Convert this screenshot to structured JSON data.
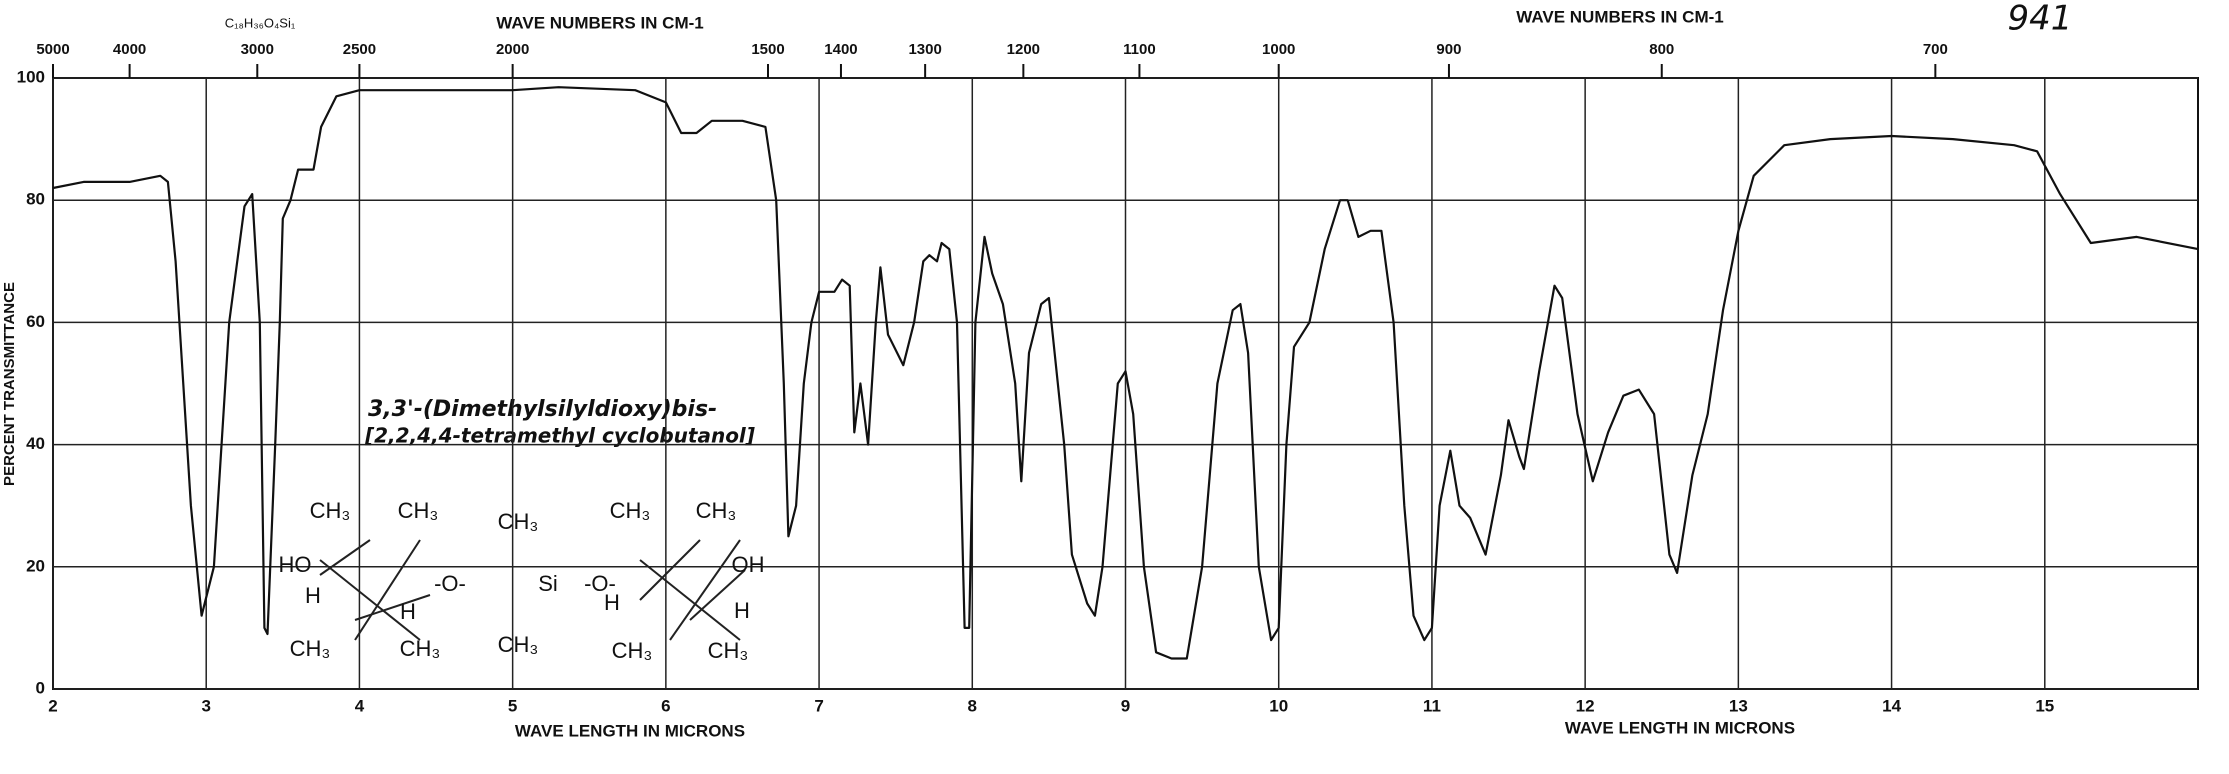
{
  "chart_data": {
    "type": "line",
    "formula": "C₁₈H₃₆O₄Si₁",
    "top_axis_label": "WAVE NUMBERS IN CM-1",
    "top_axis_label_right": "WAVE NUMBERS IN CM-1",
    "x_label": "WAVE LENGTH IN MICRONS",
    "x_label_right": "WAVE LENGTH IN MICRONS",
    "y_label": "PERCENT TRANSMITTANCE",
    "spectrum_number": "941",
    "annotation": [
      "3,3'-(Dimethylsilyldioxy)bis-",
      "[2,2,4,4-tetramethyl cyclobutanol]"
    ],
    "structure_labels": [
      "CH₃",
      "CH₃",
      "HO",
      "H",
      "CH₃",
      "CH₃",
      "H",
      "-O-",
      "CH₃",
      "Si",
      "CH₃",
      "-O-",
      "CH₃",
      "CH₃",
      "OH",
      "H",
      "H",
      "CH₃",
      "CH₃"
    ],
    "color": "#111111",
    "grid": true,
    "xlim": [
      2,
      16
    ],
    "xticks": [
      2,
      3,
      4,
      5,
      6,
      7,
      8,
      9,
      10,
      11,
      12,
      13,
      14,
      15
    ],
    "ylim": [
      0,
      100
    ],
    "yticks": [
      0,
      20,
      40,
      60,
      80,
      100
    ],
    "top_xticks": [
      5000,
      4000,
      3000,
      2500,
      2000,
      1500,
      1400,
      1300,
      1200,
      1100,
      1000,
      900,
      800,
      700
    ],
    "x": [
      2.0,
      2.2,
      2.5,
      2.7,
      2.75,
      2.8,
      2.9,
      2.97,
      3.05,
      3.15,
      3.25,
      3.3,
      3.35,
      3.38,
      3.4,
      3.45,
      3.48,
      3.5,
      3.55,
      3.6,
      3.7,
      3.75,
      3.85,
      4.0,
      4.5,
      5.0,
      5.3,
      5.8,
      6.0,
      6.1,
      6.2,
      6.3,
      6.5,
      6.65,
      6.72,
      6.77,
      6.8,
      6.85,
      6.9,
      6.95,
      7.0,
      7.1,
      7.15,
      7.2,
      7.23,
      7.27,
      7.32,
      7.37,
      7.4,
      7.45,
      7.55,
      7.62,
      7.68,
      7.72,
      7.77,
      7.8,
      7.85,
      7.9,
      7.95,
      7.98,
      8.02,
      8.08,
      8.13,
      8.2,
      8.28,
      8.32,
      8.37,
      8.45,
      8.5,
      8.6,
      8.65,
      8.75,
      8.8,
      8.85,
      8.95,
      9.0,
      9.05,
      9.12,
      9.2,
      9.3,
      9.4,
      9.5,
      9.6,
      9.7,
      9.75,
      9.8,
      9.87,
      9.95,
      10.0,
      10.05,
      10.1,
      10.2,
      10.3,
      10.4,
      10.45,
      10.52,
      10.6,
      10.67,
      10.75,
      10.82,
      10.88,
      10.95,
      11.0,
      11.05,
      11.12,
      11.18,
      11.25,
      11.35,
      11.45,
      11.5,
      11.57,
      11.6,
      11.7,
      11.8,
      11.85,
      11.95,
      12.05,
      12.15,
      12.25,
      12.35,
      12.45,
      12.55,
      12.6,
      12.7,
      12.8,
      12.9,
      13.0,
      13.1,
      13.3,
      13.6,
      14.0,
      14.4,
      14.8,
      14.95,
      15.1,
      15.3,
      15.6,
      16.0
    ],
    "values": [
      82,
      83,
      83,
      84,
      83,
      70,
      30,
      12,
      20,
      60,
      79,
      81,
      60,
      10,
      9,
      40,
      60,
      77,
      80,
      85,
      85,
      92,
      97,
      98,
      98,
      98,
      98.5,
      98,
      96,
      91,
      91,
      93,
      93,
      92,
      80,
      50,
      25,
      30,
      50,
      60,
      65,
      65,
      67,
      66,
      42,
      50,
      40,
      60,
      69,
      58,
      53,
      60,
      70,
      71,
      70,
      73,
      72,
      60,
      10,
      10,
      60,
      74,
      68,
      63,
      50,
      34,
      55,
      63,
      64,
      40,
      22,
      14,
      12,
      20,
      50,
      52,
      45,
      20,
      6,
      5,
      5,
      20,
      50,
      62,
      63,
      55,
      20,
      8,
      10,
      40,
      56,
      60,
      72,
      80,
      80,
      74,
      75,
      75,
      60,
      30,
      12,
      8,
      10,
      30,
      39,
      30,
      28,
      22,
      35,
      44,
      38,
      36,
      52,
      66,
      64,
      45,
      34,
      42,
      48,
      49,
      45,
      22,
      19,
      35,
      45,
      62,
      75,
      84,
      89,
      90,
      90.5,
      90,
      89,
      88,
      81,
      73,
      74,
      72
    ]
  }
}
